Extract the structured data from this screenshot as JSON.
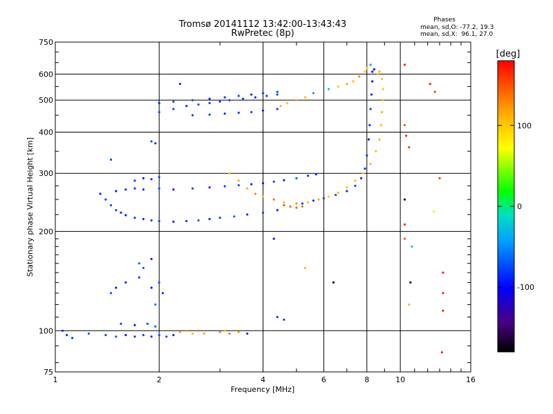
{
  "chart_data": {
    "type": "scatter",
    "title": "Tromsø 20141112 13:42:00-13:43:43",
    "subtitle": "RwPretec (8p)",
    "xlabel": "Frequency [MHz]",
    "ylabel": "Stationary phase Virtual Height [km]",
    "x_scale": "log",
    "y_scale": "log",
    "xlim": [
      1,
      16
    ],
    "ylim": [
      75,
      750
    ],
    "x_ticks": [
      1,
      2,
      4,
      6,
      8,
      10,
      16
    ],
    "y_ticks": [
      75,
      100,
      200,
      300,
      400,
      500,
      600,
      750
    ],
    "grid": true,
    "phase_box": {
      "heading": "Phases",
      "line_o": "mean, sd,O: -77.2, 19.3",
      "line_x": "mean, sd,X:  96.1, 27.0"
    },
    "colorbar": {
      "label": "[deg]",
      "ticks": [
        100,
        0,
        -100
      ],
      "range": [
        -180,
        180
      ]
    },
    "series": [
      {
        "points": [
          [
            1.05,
            100,
            -90
          ],
          [
            1.08,
            97,
            -90
          ],
          [
            1.12,
            95,
            -85
          ],
          [
            1.25,
            98,
            -80
          ],
          [
            1.4,
            97,
            -85
          ],
          [
            1.5,
            96,
            -80
          ],
          [
            1.6,
            97,
            -95
          ],
          [
            1.7,
            96,
            -90
          ],
          [
            1.8,
            97,
            -85
          ],
          [
            1.9,
            96,
            -90
          ],
          [
            2.0,
            97,
            -80
          ],
          [
            2.1,
            96,
            -85
          ],
          [
            2.2,
            97,
            -90
          ],
          [
            1.55,
            105,
            -85
          ],
          [
            1.7,
            104,
            -95
          ],
          [
            1.85,
            105,
            -80
          ],
          [
            1.95,
            103,
            -75
          ],
          [
            2.3,
            99,
            120
          ],
          [
            2.4,
            100,
            130
          ],
          [
            2.5,
            98,
            110
          ],
          [
            2.6,
            100,
            140
          ],
          [
            2.7,
            98,
            120
          ],
          [
            3.0,
            99,
            130
          ],
          [
            3.1,
            100,
            110
          ],
          [
            3.2,
            98,
            140
          ],
          [
            3.4,
            99,
            120
          ],
          [
            3.6,
            98,
            -90
          ],
          [
            1.45,
            130,
            -80
          ],
          [
            1.5,
            135,
            -95
          ],
          [
            1.6,
            140,
            -90
          ],
          [
            1.75,
            145,
            -85
          ],
          [
            1.8,
            155,
            -80
          ],
          [
            1.9,
            135,
            -95
          ],
          [
            2.05,
            130,
            -90
          ],
          [
            1.75,
            160,
            -75
          ],
          [
            1.9,
            165,
            -95
          ],
          [
            2.0,
            140,
            -80
          ],
          [
            1.95,
            120,
            -70
          ],
          [
            1.9,
            375,
            -80
          ],
          [
            1.95,
            370,
            -85
          ],
          [
            2.3,
            560,
            -90
          ],
          [
            1.45,
            330,
            -80
          ],
          [
            1.35,
            260,
            -90
          ],
          [
            1.4,
            250,
            -85
          ],
          [
            1.45,
            240,
            -80
          ],
          [
            1.5,
            232,
            -85
          ],
          [
            1.55,
            228,
            -90
          ],
          [
            1.6,
            224,
            -95
          ],
          [
            1.7,
            220,
            -85
          ],
          [
            1.8,
            218,
            -90
          ],
          [
            1.9,
            216,
            -85
          ],
          [
            2.0,
            215,
            -80
          ],
          [
            2.2,
            214,
            -95
          ],
          [
            2.4,
            215,
            -85
          ],
          [
            2.6,
            216,
            -80
          ],
          [
            2.8,
            218,
            -90
          ],
          [
            3.0,
            220,
            -85
          ],
          [
            3.3,
            222,
            -75
          ],
          [
            3.6,
            225,
            -90
          ],
          [
            4.0,
            228,
            -85
          ],
          [
            4.4,
            232,
            -90
          ],
          [
            4.8,
            238,
            -80
          ],
          [
            5.2,
            243,
            -85
          ],
          [
            5.6,
            248,
            -90
          ],
          [
            6.0,
            252,
            -85
          ],
          [
            6.5,
            258,
            -80
          ],
          [
            7.0,
            265,
            -90
          ],
          [
            7.4,
            275,
            -85
          ],
          [
            7.7,
            290,
            -95
          ],
          [
            7.9,
            310,
            -90
          ],
          [
            8.0,
            340,
            -85
          ],
          [
            8.1,
            380,
            -95
          ],
          [
            8.15,
            420,
            -90
          ],
          [
            8.2,
            470,
            -85
          ],
          [
            8.25,
            520,
            -90
          ],
          [
            8.3,
            570,
            -95
          ],
          [
            8.3,
            610,
            -100
          ],
          [
            1.5,
            265,
            -95
          ],
          [
            1.6,
            268,
            -90
          ],
          [
            1.7,
            270,
            -85
          ],
          [
            1.8,
            268,
            -90
          ],
          [
            2.0,
            270,
            -80
          ],
          [
            2.2,
            268,
            -95
          ],
          [
            2.5,
            270,
            -85
          ],
          [
            2.8,
            272,
            -90
          ],
          [
            3.1,
            274,
            -85
          ],
          [
            3.4,
            276,
            -80
          ],
          [
            3.7,
            278,
            -90
          ],
          [
            4.0,
            280,
            -95
          ],
          [
            4.3,
            283,
            -85
          ],
          [
            4.6,
            286,
            -90
          ],
          [
            5.0,
            290,
            -80
          ],
          [
            5.4,
            295,
            -85
          ],
          [
            5.7,
            298,
            -90
          ],
          [
            1.7,
            285,
            -85
          ],
          [
            1.8,
            290,
            -95
          ],
          [
            1.9,
            288,
            -90
          ],
          [
            2.0,
            292,
            -85
          ],
          [
            3.2,
            300,
            100
          ],
          [
            3.4,
            285,
            120
          ],
          [
            3.6,
            270,
            110
          ],
          [
            3.8,
            260,
            130
          ],
          [
            4.0,
            255,
            105
          ],
          [
            4.3,
            250,
            140
          ],
          [
            4.6,
            245,
            120
          ],
          [
            5.0,
            243,
            130
          ],
          [
            5.4,
            245,
            110
          ],
          [
            5.8,
            250,
            120
          ],
          [
            6.2,
            255,
            100
          ],
          [
            6.6,
            262,
            115
          ],
          [
            7.0,
            272,
            105
          ],
          [
            7.4,
            285,
            110
          ],
          [
            7.8,
            300,
            100
          ],
          [
            8.2,
            320,
            115
          ],
          [
            8.5,
            350,
            100
          ],
          [
            8.7,
            380,
            110
          ],
          [
            8.8,
            420,
            105
          ],
          [
            8.85,
            460,
            115
          ],
          [
            8.9,
            500,
            110
          ],
          [
            8.9,
            540,
            100
          ],
          [
            8.85,
            580,
            105
          ],
          [
            8.7,
            610,
            120
          ],
          [
            4.6,
            240,
            150
          ],
          [
            4.8,
            238,
            140
          ],
          [
            5.0,
            236,
            150
          ],
          [
            5.2,
            238,
            140
          ],
          [
            2.0,
            460,
            -80
          ],
          [
            2.2,
            470,
            -85
          ],
          [
            2.4,
            480,
            -90
          ],
          [
            2.6,
            485,
            -80
          ],
          [
            2.8,
            490,
            -85
          ],
          [
            3.0,
            495,
            -90
          ],
          [
            3.2,
            500,
            -85
          ],
          [
            3.5,
            505,
            -80
          ],
          [
            3.8,
            510,
            -90
          ],
          [
            4.1,
            515,
            -85
          ],
          [
            4.4,
            520,
            -80
          ],
          [
            2.0,
            490,
            -90
          ],
          [
            2.2,
            495,
            -85
          ],
          [
            2.5,
            500,
            -80
          ],
          [
            2.8,
            505,
            -90
          ],
          [
            3.1,
            510,
            -85
          ],
          [
            3.4,
            515,
            -80
          ],
          [
            3.7,
            520,
            -90
          ],
          [
            4.0,
            525,
            -85
          ],
          [
            4.4,
            530,
            -80
          ],
          [
            2.5,
            450,
            -85
          ],
          [
            2.8,
            452,
            -80
          ],
          [
            3.1,
            455,
            -90
          ],
          [
            3.4,
            458,
            -85
          ],
          [
            3.7,
            460,
            -80
          ],
          [
            4.0,
            465,
            -90
          ],
          [
            4.4,
            470,
            -85
          ],
          [
            4.5,
            480,
            110
          ],
          [
            4.7,
            490,
            100
          ],
          [
            5.0,
            500,
            120
          ],
          [
            5.3,
            510,
            110
          ],
          [
            5.6,
            525,
            -60
          ],
          [
            6.2,
            540,
            -40
          ],
          [
            6.6,
            550,
            100
          ],
          [
            7.0,
            560,
            120
          ],
          [
            7.3,
            570,
            110
          ],
          [
            7.6,
            590,
            130
          ],
          [
            7.9,
            610,
            100
          ],
          [
            8.0,
            625,
            90
          ],
          [
            8.2,
            640,
            -60
          ],
          [
            8.4,
            620,
            -100
          ],
          [
            8.6,
            600,
            110
          ],
          [
            10.3,
            640,
            170
          ],
          [
            10.3,
            420,
            150
          ],
          [
            10.4,
            390,
            170
          ],
          [
            10.6,
            360,
            160
          ],
          [
            10.3,
            250,
            -160
          ],
          [
            10.3,
            210,
            170
          ],
          [
            10.3,
            190,
            150
          ],
          [
            10.8,
            180,
            -40
          ],
          [
            10.7,
            140,
            -160
          ],
          [
            10.6,
            120,
            110
          ],
          [
            12.2,
            560,
            170
          ],
          [
            12.6,
            530,
            160
          ],
          [
            12.5,
            230,
            70
          ],
          [
            13.0,
            290,
            160
          ],
          [
            13.3,
            150,
            170
          ],
          [
            13.3,
            130,
            170
          ],
          [
            13.3,
            115,
            170
          ],
          [
            13.2,
            86,
            170
          ],
          [
            4.4,
            110,
            -85
          ],
          [
            4.6,
            108,
            -90
          ],
          [
            4.3,
            190,
            -95
          ],
          [
            5.3,
            155,
            110
          ],
          [
            6.4,
            140,
            -170
          ]
        ]
      }
    ]
  }
}
